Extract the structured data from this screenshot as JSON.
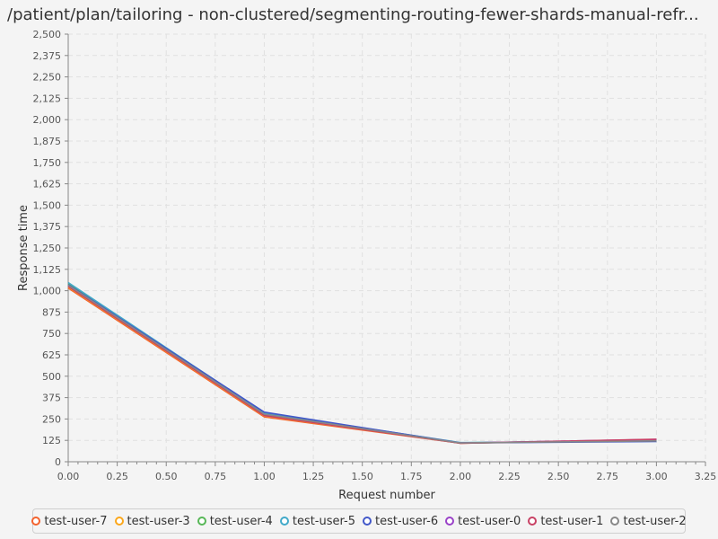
{
  "colors": {
    "background": "#f4f4f4",
    "grid": "#e0e0e0",
    "axis": "#888888"
  },
  "chart_data": {
    "type": "line",
    "title": "/patient/plan/tailoring - non-clustered/segmenting-routing-fewer-shards-manual-refr...",
    "xlabel": "Request number",
    "ylabel": "Response time",
    "xlim": [
      0,
      3.25
    ],
    "ylim": [
      0,
      2500
    ],
    "x_ticks": [
      "0.00",
      "0.25",
      "0.50",
      "0.75",
      "1.00",
      "1.25",
      "1.50",
      "1.75",
      "2.00",
      "2.25",
      "2.50",
      "2.75",
      "3.00",
      "3.25"
    ],
    "y_ticks": [
      "0",
      "125",
      "250",
      "375",
      "500",
      "625",
      "750",
      "875",
      "1,000",
      "1,125",
      "1,250",
      "1,375",
      "1,500",
      "1,625",
      "1,750",
      "1,875",
      "2,000",
      "2,125",
      "2,250",
      "2,375",
      "2,500"
    ],
    "grid": true,
    "legend_position": "bottom",
    "series": [
      {
        "name": "test-user-7",
        "color": "#f3622d",
        "x": [
          0,
          1,
          2,
          3
        ],
        "y": [
          1015,
          262,
          108,
          128
        ]
      },
      {
        "name": "test-user-3",
        "color": "#fba71b",
        "x": [
          0,
          1,
          2,
          3
        ],
        "y": [
          1022,
          268,
          109,
          127
        ]
      },
      {
        "name": "test-user-4",
        "color": "#57b757",
        "x": [
          0,
          1,
          2,
          3
        ],
        "y": [
          1040,
          280,
          111,
          125
        ]
      },
      {
        "name": "test-user-5",
        "color": "#41a9c9",
        "x": [
          0,
          1,
          2,
          3
        ],
        "y": [
          1048,
          285,
          112,
          120
        ]
      },
      {
        "name": "test-user-6",
        "color": "#4258c9",
        "x": [
          0,
          1,
          2,
          3
        ],
        "y": [
          1035,
          290,
          110,
          118
        ]
      },
      {
        "name": "test-user-0",
        "color": "#9a42c8",
        "x": [
          0,
          1,
          2,
          3
        ],
        "y": [
          1030,
          275,
          109,
          130
        ]
      },
      {
        "name": "test-user-1",
        "color": "#c84164",
        "x": [
          0,
          1,
          2,
          3
        ],
        "y": [
          1025,
          270,
          108,
          132
        ]
      },
      {
        "name": "test-user-2",
        "color": "#888888",
        "x": [
          0,
          1,
          2,
          3
        ],
        "y": [
          1032,
          278,
          110,
          122
        ]
      }
    ]
  }
}
